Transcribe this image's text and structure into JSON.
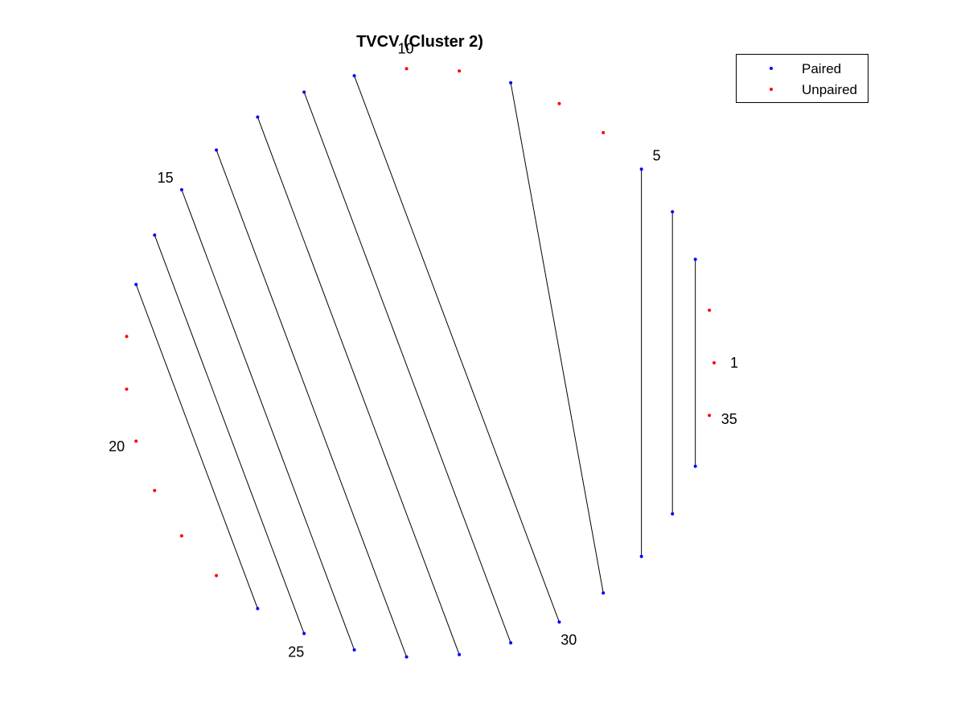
{
  "chart_data": {
    "type": "scatter",
    "title": "TVCV (Cluster 2)",
    "node_count": 35,
    "nodes": [
      1,
      2,
      3,
      4,
      5,
      6,
      7,
      8,
      9,
      10,
      11,
      12,
      13,
      14,
      15,
      16,
      17,
      18,
      19,
      20,
      21,
      22,
      23,
      24,
      25,
      26,
      27,
      28,
      29,
      30,
      31,
      32,
      33,
      34,
      35
    ],
    "number_labels": [
      "1",
      "5",
      "10",
      "15",
      "20",
      "25",
      "30",
      "35"
    ],
    "pairs": [
      [
        3,
        34
      ],
      [
        4,
        33
      ],
      [
        5,
        32
      ],
      [
        8,
        31
      ],
      [
        11,
        30
      ],
      [
        12,
        29
      ],
      [
        13,
        28
      ],
      [
        14,
        27
      ],
      [
        15,
        26
      ],
      [
        16,
        25
      ],
      [
        17,
        24
      ]
    ],
    "unpaired": [
      1,
      2,
      6,
      7,
      9,
      10,
      18,
      19,
      20,
      21,
      22,
      23,
      35
    ],
    "series": [
      {
        "name": "Paired",
        "color": "#0000ff"
      },
      {
        "name": "Unpaired",
        "color": "#ff0000"
      }
    ],
    "line_color": "#000000",
    "legend_position": "top-right",
    "grid": false,
    "axes_visible": false
  }
}
